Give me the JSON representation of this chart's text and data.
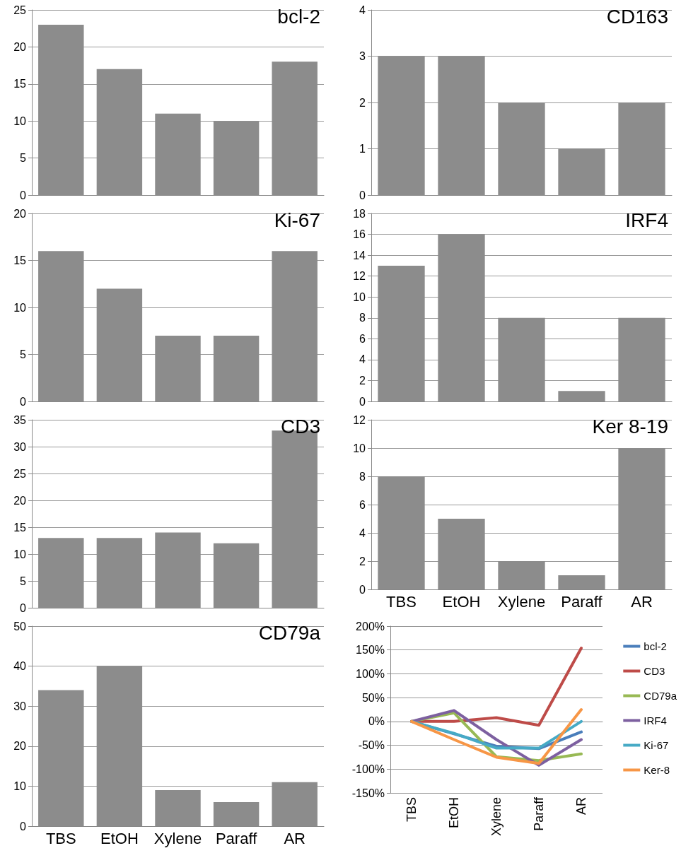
{
  "chart_data": [
    {
      "type": "bar",
      "title": "bcl-2",
      "categories": [
        null,
        null,
        null,
        null,
        null
      ],
      "values": [
        23,
        17,
        11,
        10,
        18
      ],
      "color": "#8c8c8c",
      "ylim": [
        0,
        25
      ],
      "yticks": [
        0,
        5,
        10,
        15,
        20,
        25
      ],
      "grid": "y"
    },
    {
      "type": "bar",
      "title": "CD163",
      "categories": [
        null,
        null,
        null,
        null,
        null
      ],
      "values": [
        3,
        3,
        2,
        1,
        2
      ],
      "color": "#8c8c8c",
      "ylim": [
        0,
        4
      ],
      "yticks": [
        0,
        1,
        2,
        3,
        4
      ],
      "grid": "y"
    },
    {
      "type": "bar",
      "title": "Ki-67",
      "categories": [
        null,
        null,
        null,
        null,
        null
      ],
      "values": [
        16,
        12,
        7,
        7,
        16
      ],
      "color": "#8c8c8c",
      "ylim": [
        0,
        20
      ],
      "yticks": [
        0,
        5,
        10,
        15,
        20
      ],
      "grid": "y"
    },
    {
      "type": "bar",
      "title": "IRF4",
      "categories": [
        null,
        null,
        null,
        null,
        null
      ],
      "values": [
        13,
        16,
        8,
        1,
        8
      ],
      "color": "#8c8c8c",
      "ylim": [
        0,
        18
      ],
      "yticks": [
        0,
        2,
        4,
        6,
        8,
        10,
        12,
        14,
        16,
        18
      ],
      "grid": "y"
    },
    {
      "type": "bar",
      "title": "CD3",
      "categories": [
        null,
        null,
        null,
        null,
        null
      ],
      "values": [
        13,
        13,
        14,
        12,
        33
      ],
      "color": "#8c8c8c",
      "ylim": [
        0,
        35
      ],
      "yticks": [
        0,
        5,
        10,
        15,
        20,
        25,
        30,
        35
      ],
      "grid": "y"
    },
    {
      "type": "bar",
      "title": "Ker 8-19",
      "categories": [
        "TBS",
        "EtOH",
        "Xylene",
        "Paraff",
        "AR"
      ],
      "values": [
        8,
        5,
        2,
        1,
        10
      ],
      "color": "#8c8c8c",
      "ylim": [
        0,
        12
      ],
      "yticks": [
        0,
        2,
        4,
        6,
        8,
        10,
        12
      ],
      "grid": "y"
    },
    {
      "type": "bar",
      "title": "CD79a",
      "categories": [
        "TBS",
        "EtOH",
        "Xylene",
        "Paraff",
        "AR"
      ],
      "values": [
        34,
        40,
        9,
        6,
        11
      ],
      "color": "#8c8c8c",
      "ylim": [
        0,
        50
      ],
      "yticks": [
        0,
        10,
        20,
        30,
        40,
        50
      ],
      "grid": "y"
    },
    {
      "type": "line",
      "categories": [
        "TBS",
        "EtOH",
        "Xylene",
        "Paraff",
        "AR"
      ],
      "ylim": [
        -150,
        200
      ],
      "yticks": [
        {
          "value": -150,
          "label": "-150%"
        },
        {
          "value": -100,
          "label": "-100%"
        },
        {
          "value": -50,
          "label": "-50%"
        },
        {
          "value": 0,
          "label": "0%"
        },
        {
          "value": 50,
          "label": "50%"
        },
        {
          "value": 100,
          "label": "100%"
        },
        {
          "value": 150,
          "label": "150%"
        },
        {
          "value": 200,
          "label": "200%"
        }
      ],
      "grid": "y",
      "legend": "right",
      "marker": "none",
      "line_style": "solid",
      "series": [
        {
          "name": "bcl-2",
          "color": "#4a7ebb",
          "values": [
            0,
            -26,
            -52,
            -57,
            -22
          ]
        },
        {
          "name": "CD3",
          "color": "#be4b48",
          "values": [
            0,
            0,
            8,
            -8,
            154
          ]
        },
        {
          "name": "CD79a",
          "color": "#98b954",
          "values": [
            0,
            18,
            -74,
            -82,
            -68
          ]
        },
        {
          "name": "IRF4",
          "color": "#7d60a0",
          "values": [
            0,
            23,
            -38,
            -92,
            -38
          ]
        },
        {
          "name": "Ki-67",
          "color": "#46aac5",
          "values": [
            0,
            -25,
            -56,
            -56,
            0
          ]
        },
        {
          "name": "Ker-8",
          "color": "#f79646",
          "values": [
            0,
            -38,
            -75,
            -88,
            25
          ]
        }
      ]
    }
  ]
}
